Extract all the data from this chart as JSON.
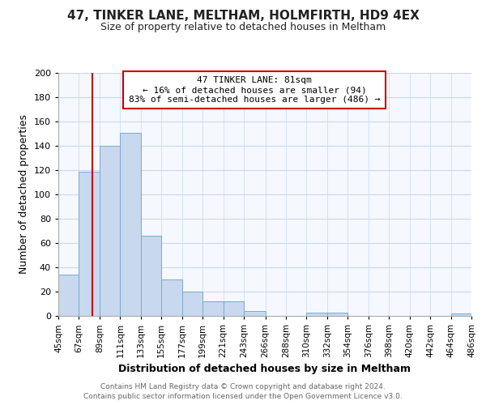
{
  "title": "47, TINKER LANE, MELTHAM, HOLMFIRTH, HD9 4EX",
  "subtitle": "Size of property relative to detached houses in Meltham",
  "xlabel": "Distribution of detached houses by size in Meltham",
  "ylabel": "Number of detached properties",
  "bar_color": "#c8d8ee",
  "bar_edge_color": "#7aaad0",
  "grid_color": "#c8d8ee",
  "background_color": "#ffffff",
  "plot_bg_color": "#f5f8ff",
  "vline_x": 81,
  "vline_color": "#cc0000",
  "annotation_line1": "47 TINKER LANE: 81sqm",
  "annotation_line2": "← 16% of detached houses are smaller (94)",
  "annotation_line3": "83% of semi-detached houses are larger (486) →",
  "annotation_box_color": "#ffffff",
  "annotation_border_color": "#cc0000",
  "bin_edges": [
    45,
    67,
    89,
    111,
    133,
    155,
    177,
    199,
    221,
    243,
    266,
    288,
    310,
    332,
    354,
    376,
    398,
    420,
    442,
    464,
    486
  ],
  "bin_heights": [
    34,
    119,
    140,
    151,
    66,
    30,
    20,
    12,
    12,
    4,
    0,
    0,
    3,
    3,
    0,
    0,
    0,
    0,
    0,
    2
  ],
  "ylim": [
    0,
    200
  ],
  "yticks": [
    0,
    20,
    40,
    60,
    80,
    100,
    120,
    140,
    160,
    180,
    200
  ],
  "xticklabels": [
    "45sqm",
    "67sqm",
    "89sqm",
    "111sqm",
    "133sqm",
    "155sqm",
    "177sqm",
    "199sqm",
    "221sqm",
    "243sqm",
    "266sqm",
    "288sqm",
    "310sqm",
    "332sqm",
    "354sqm",
    "376sqm",
    "398sqm",
    "420sqm",
    "442sqm",
    "464sqm",
    "486sqm"
  ],
  "footer_line1": "Contains HM Land Registry data © Crown copyright and database right 2024.",
  "footer_line2": "Contains public sector information licensed under the Open Government Licence v3.0."
}
